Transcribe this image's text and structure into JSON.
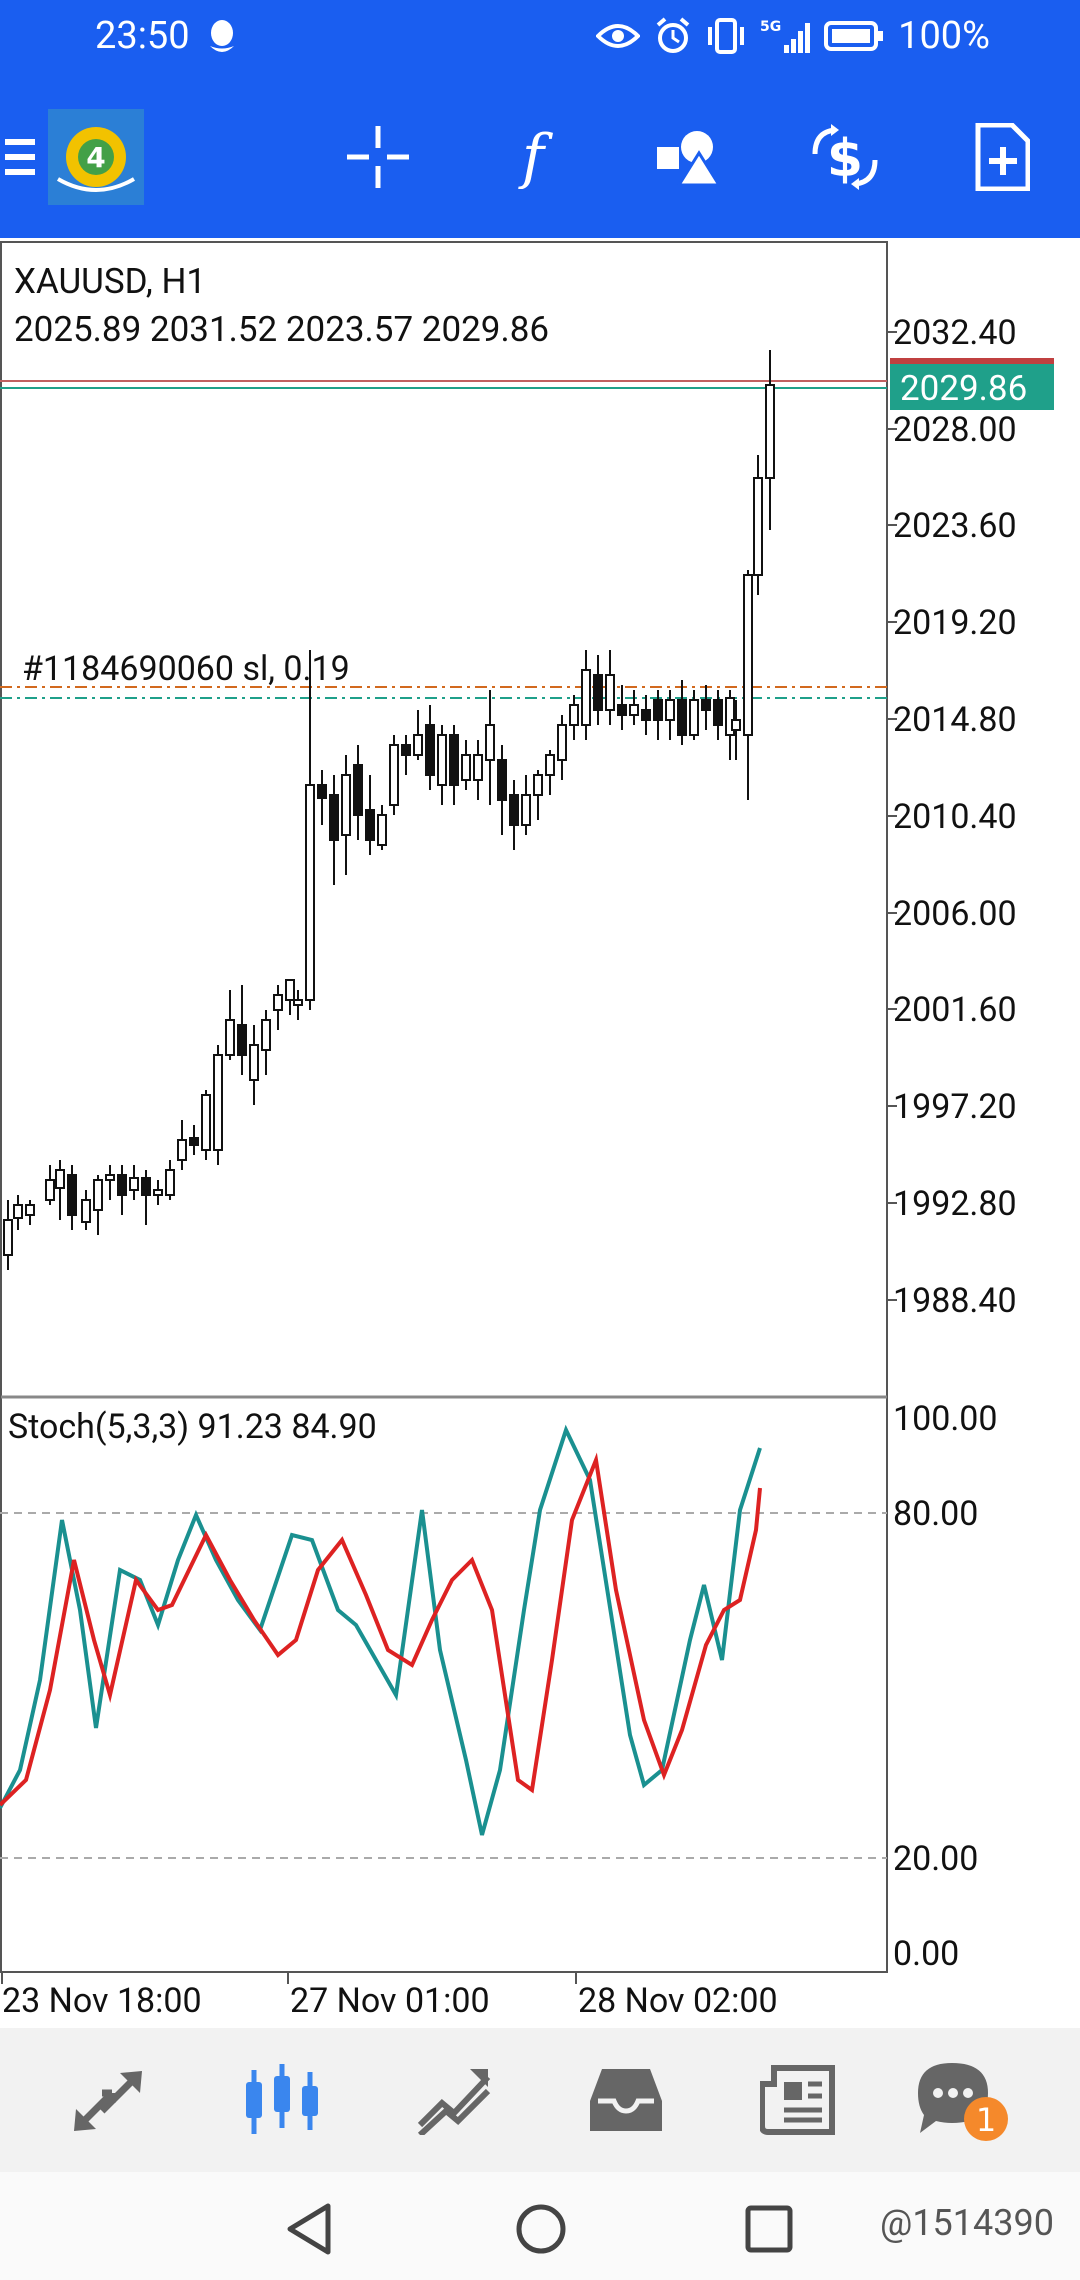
{
  "status_bar": {
    "time": "23:50",
    "battery": "100%",
    "network": "5G"
  },
  "toolbar": {
    "app_icon": "metatrader-4-icon",
    "buttons": [
      "crosshair-icon",
      "indicators-icon",
      "objects-icon",
      "trade-icon",
      "new-order-icon"
    ]
  },
  "chart": {
    "symbol_line": "XAUUSD, H1",
    "ohlc_line": "2025.89 2031.52 2023.57 2029.86",
    "current_price": "2029.86",
    "order_label": "#1184690060 sl, 0.19",
    "price_axis": [
      "2032.40",
      "2028.00",
      "2023.60",
      "2019.20",
      "2014.80",
      "2010.40",
      "2006.00",
      "2001.60",
      "1997.20",
      "1992.80",
      "1988.40"
    ],
    "stoch_label": "Stoch(5,3,3) 91.23 84.90",
    "stoch_axis": [
      "100.00",
      "80.00",
      "20.00",
      "0.00"
    ],
    "time_axis": [
      "23 Nov 18:00",
      "27 Nov 01:00",
      "28 Nov 02:00"
    ],
    "colors": {
      "accent": "#1a5ef0",
      "bid_line": "#1fa08a",
      "ask_line": "#c04040",
      "stoch_main": "#1a9090",
      "stoch_signal": "#dd2222"
    }
  },
  "bottom_nav": {
    "items": [
      "quotes-icon",
      "chart-icon",
      "trade-icon",
      "history-icon",
      "news-icon",
      "messages-icon"
    ],
    "active": "chart-icon",
    "badge": "1"
  },
  "system_nav": {
    "watermark": "@1514390"
  }
}
